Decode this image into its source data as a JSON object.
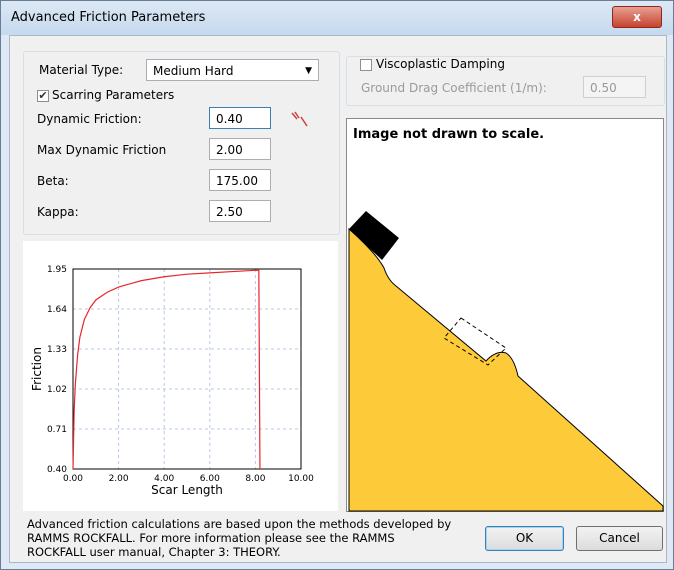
{
  "window": {
    "title": "Advanced Friction Parameters"
  },
  "material": {
    "label": "Material Type:",
    "value": "Medium Hard"
  },
  "scarring": {
    "label": "Scarring Parameters",
    "checked": true,
    "fields": [
      {
        "label": "Dynamic Friction:",
        "value": "0.40"
      },
      {
        "label": "Max Dynamic Friction",
        "value": "2.00"
      },
      {
        "label": "Beta:",
        "value": "175.00"
      },
      {
        "label": "Kappa:",
        "value": "2.50"
      }
    ]
  },
  "viscoplastic": {
    "label": "Viscoplastic Damping",
    "checked": false,
    "drag_label": "Ground Drag Coefficient (1/m):",
    "drag_value": "0.50"
  },
  "image_note": "Image not drawn to scale.",
  "chart_data": {
    "type": "line",
    "x_label": "Scar Length",
    "y_label": "Friction",
    "x": [
      0,
      0.05,
      0.1,
      0.2,
      0.3,
      0.5,
      0.75,
      1,
      1.5,
      2,
      3,
      4,
      5,
      6,
      7,
      8,
      8.15,
      8.2
    ],
    "series": [
      {
        "color": "#e8262a",
        "values": [
          0.4,
          0.85,
          1.05,
          1.28,
          1.42,
          1.56,
          1.65,
          1.71,
          1.77,
          1.81,
          1.86,
          1.89,
          1.91,
          1.92,
          1.93,
          1.94,
          1.94,
          0.4
        ]
      }
    ],
    "xlim": [
      0,
      10
    ],
    "ylim": [
      0.4,
      1.95
    ],
    "xticks": [
      {
        "value": 0,
        "label": "0.00"
      },
      {
        "value": 2,
        "label": "2.00"
      },
      {
        "value": 4,
        "label": "4.00"
      },
      {
        "value": 6,
        "label": "6.00"
      },
      {
        "value": 8,
        "label": "8.00"
      },
      {
        "value": 10,
        "label": "10.00"
      }
    ],
    "yticks": [
      {
        "value": 0.4,
        "label": "0.40"
      },
      0.71,
      1.02,
      1.33,
      1.64,
      1.95
    ],
    "grid": true
  },
  "footer": [
    "Advanced friction calculations are based upon the methods developed by",
    "RAMMS ROCKFALL. For more information please see the RAMMS",
    "ROCKFALL user manual, Chapter 3: THEORY."
  ],
  "buttons": [
    "OK",
    "Cancel"
  ]
}
